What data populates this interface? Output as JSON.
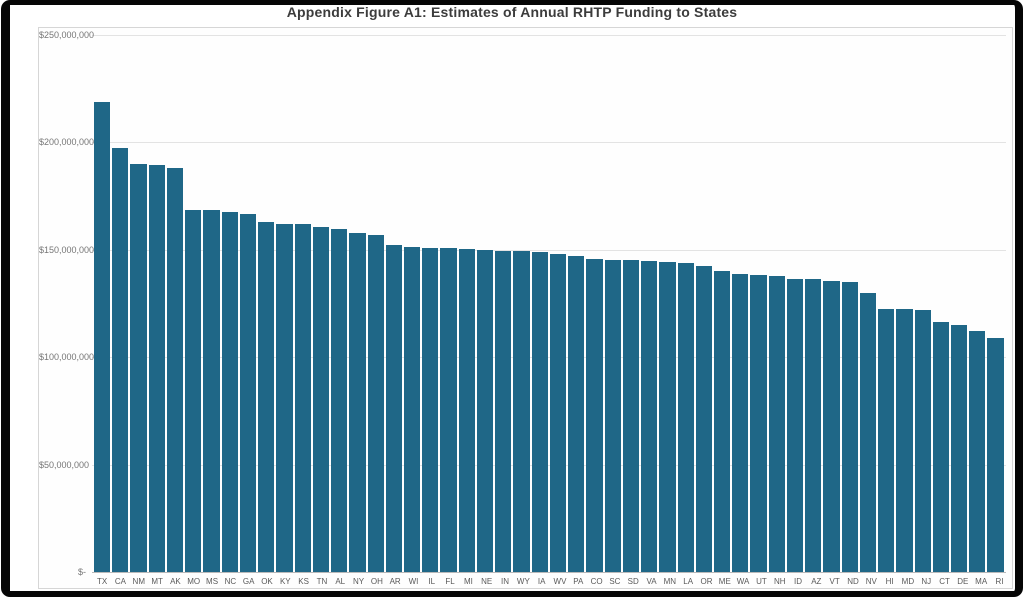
{
  "figure": {
    "title": "Appendix Figure A1: Estimates of Annual RHTP Funding to States"
  },
  "chart_data": {
    "type": "bar",
    "title": "Appendix Figure A1: Estimates of Annual RHTP Funding to States",
    "xlabel": "",
    "ylabel": "",
    "legend": "none",
    "grid": "horizontal",
    "bar_color": "#1f6787",
    "ylim": [
      0,
      250000000
    ],
    "y_axis": {
      "tick_values": [
        250000000,
        200000000,
        150000000,
        100000000,
        50000000,
        0
      ],
      "tick_labels": [
        "$250,000,000",
        "$200,000,000",
        "$150,000,000",
        "$100,000,000",
        "$50,000,000",
        "$-"
      ]
    },
    "categories": [
      "TX",
      "CA",
      "NM",
      "MT",
      "AK",
      "MO",
      "MS",
      "NC",
      "GA",
      "OK",
      "KY",
      "KS",
      "TN",
      "AL",
      "NY",
      "OH",
      "AR",
      "WI",
      "IL",
      "FL",
      "MI",
      "NE",
      "IN",
      "WY",
      "IA",
      "WV",
      "PA",
      "CO",
      "SC",
      "SD",
      "VA",
      "MN",
      "LA",
      "OR",
      "ME",
      "WA",
      "UT",
      "NH",
      "ID",
      "AZ",
      "VT",
      "ND",
      "NV",
      "HI",
      "MD",
      "NJ",
      "CT",
      "DE",
      "MA",
      "RI"
    ],
    "values": [
      219000000,
      197200000,
      190000000,
      189500000,
      188200000,
      168700000,
      168400000,
      167400000,
      166600000,
      162800000,
      162200000,
      161900000,
      160400000,
      159700000,
      157700000,
      156700000,
      152300000,
      151200000,
      151000000,
      150800000,
      150200000,
      149800000,
      149600000,
      149400000,
      148900000,
      148100000,
      147000000,
      145500000,
      145200000,
      145100000,
      144600000,
      144100000,
      143700000,
      142600000,
      140300000,
      138700000,
      138100000,
      137600000,
      136500000,
      136200000,
      135600000,
      135000000,
      130000000,
      122600000,
      122400000,
      122000000,
      116400000,
      115100000,
      112000000,
      108900000
    ]
  }
}
